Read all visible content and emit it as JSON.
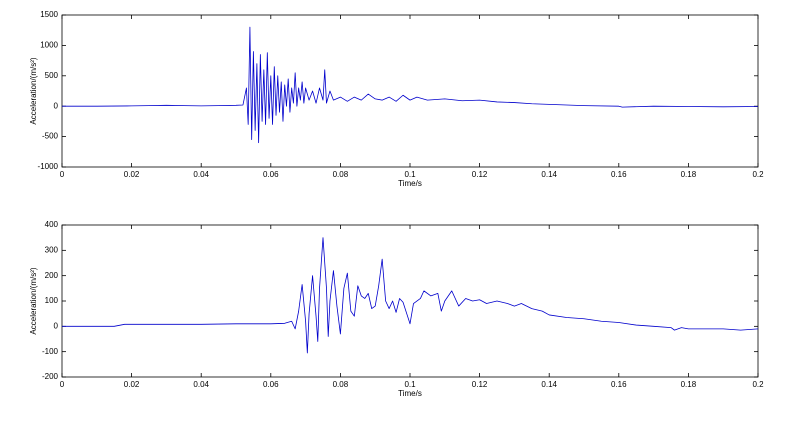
{
  "chart_data": [
    {
      "type": "line",
      "xlabel": "Time/s",
      "ylabel": "Acceleration/(m/s²)",
      "x": [
        0,
        0.01,
        0.02,
        0.025,
        0.03,
        0.035,
        0.04,
        0.045,
        0.05,
        0.052,
        0.053,
        0.0535,
        0.054,
        0.0545,
        0.055,
        0.0555,
        0.056,
        0.0565,
        0.057,
        0.0575,
        0.058,
        0.0585,
        0.059,
        0.0595,
        0.06,
        0.0605,
        0.061,
        0.0615,
        0.062,
        0.0625,
        0.063,
        0.0635,
        0.064,
        0.0645,
        0.065,
        0.0655,
        0.066,
        0.0665,
        0.067,
        0.0675,
        0.068,
        0.0685,
        0.069,
        0.0695,
        0.07,
        0.071,
        0.072,
        0.073,
        0.074,
        0.075,
        0.0755,
        0.076,
        0.077,
        0.078,
        0.08,
        0.082,
        0.084,
        0.086,
        0.088,
        0.09,
        0.092,
        0.094,
        0.096,
        0.098,
        0.1,
        0.102,
        0.105,
        0.11,
        0.115,
        0.12,
        0.125,
        0.13,
        0.135,
        0.14,
        0.15,
        0.16,
        0.161,
        0.17,
        0.18,
        0.19,
        0.2
      ],
      "series": [
        {
          "color": "#0000cc",
          "values": [
            0,
            0,
            5,
            10,
            15,
            10,
            5,
            10,
            15,
            20,
            300,
            -300,
            1300,
            -550,
            900,
            -400,
            700,
            -600,
            850,
            -250,
            600,
            -300,
            880,
            -200,
            500,
            -300,
            650,
            -150,
            500,
            -100,
            400,
            -250,
            350,
            0,
            450,
            -100,
            300,
            50,
            550,
            0,
            300,
            100,
            400,
            50,
            300,
            100,
            250,
            50,
            300,
            100,
            600,
            50,
            250,
            100,
            150,
            80,
            150,
            100,
            200,
            120,
            100,
            150,
            80,
            180,
            100,
            150,
            100,
            120,
            90,
            100,
            70,
            60,
            40,
            30,
            10,
            0,
            -15,
            0,
            -5,
            -10,
            -5
          ]
        }
      ],
      "xlim": [
        0,
        0.2
      ],
      "ylim": [
        -1000,
        1500
      ],
      "xticks": [
        0,
        0.02,
        0.04,
        0.06,
        0.08,
        0.1,
        0.12,
        0.14,
        0.16,
        0.18,
        0.2
      ],
      "yticks": [
        -1000,
        -500,
        0,
        500,
        1000,
        1500
      ]
    },
    {
      "type": "line",
      "xlabel": "Time/s",
      "ylabel": "Acceleration/(m/s²)",
      "x": [
        0,
        0.015,
        0.018,
        0.04,
        0.05,
        0.06,
        0.064,
        0.066,
        0.067,
        0.068,
        0.069,
        0.07,
        0.0705,
        0.071,
        0.072,
        0.073,
        0.0735,
        0.074,
        0.075,
        0.076,
        0.0765,
        0.077,
        0.078,
        0.079,
        0.08,
        0.081,
        0.082,
        0.083,
        0.084,
        0.085,
        0.086,
        0.087,
        0.088,
        0.089,
        0.09,
        0.091,
        0.092,
        0.093,
        0.094,
        0.095,
        0.096,
        0.097,
        0.098,
        0.1,
        0.101,
        0.103,
        0.104,
        0.106,
        0.108,
        0.109,
        0.11,
        0.112,
        0.114,
        0.116,
        0.118,
        0.12,
        0.122,
        0.125,
        0.128,
        0.13,
        0.132,
        0.135,
        0.138,
        0.14,
        0.145,
        0.15,
        0.155,
        0.16,
        0.165,
        0.17,
        0.175,
        0.176,
        0.178,
        0.18,
        0.19,
        0.195,
        0.2
      ],
      "series": [
        {
          "color": "#0000cc",
          "values": [
            0,
            0,
            8,
            8,
            10,
            10,
            12,
            20,
            -10,
            60,
            165,
            20,
            -105,
            50,
            200,
            40,
            -60,
            150,
            350,
            150,
            -40,
            100,
            220,
            80,
            -30,
            150,
            210,
            60,
            40,
            160,
            120,
            110,
            130,
            70,
            80,
            160,
            265,
            100,
            70,
            100,
            55,
            110,
            95,
            10,
            90,
            110,
            140,
            120,
            130,
            60,
            100,
            140,
            80,
            110,
            100,
            105,
            90,
            100,
            90,
            80,
            90,
            70,
            60,
            45,
            35,
            30,
            20,
            15,
            5,
            0,
            -5,
            -15,
            -5,
            -10,
            -10,
            -15,
            -10
          ]
        }
      ],
      "xlim": [
        0,
        0.2
      ],
      "ylim": [
        -200,
        400
      ],
      "xticks": [
        0,
        0.02,
        0.04,
        0.06,
        0.08,
        0.1,
        0.12,
        0.14,
        0.16,
        0.18,
        0.2
      ],
      "yticks": [
        -200,
        -100,
        0,
        100,
        200,
        300,
        400
      ]
    }
  ]
}
